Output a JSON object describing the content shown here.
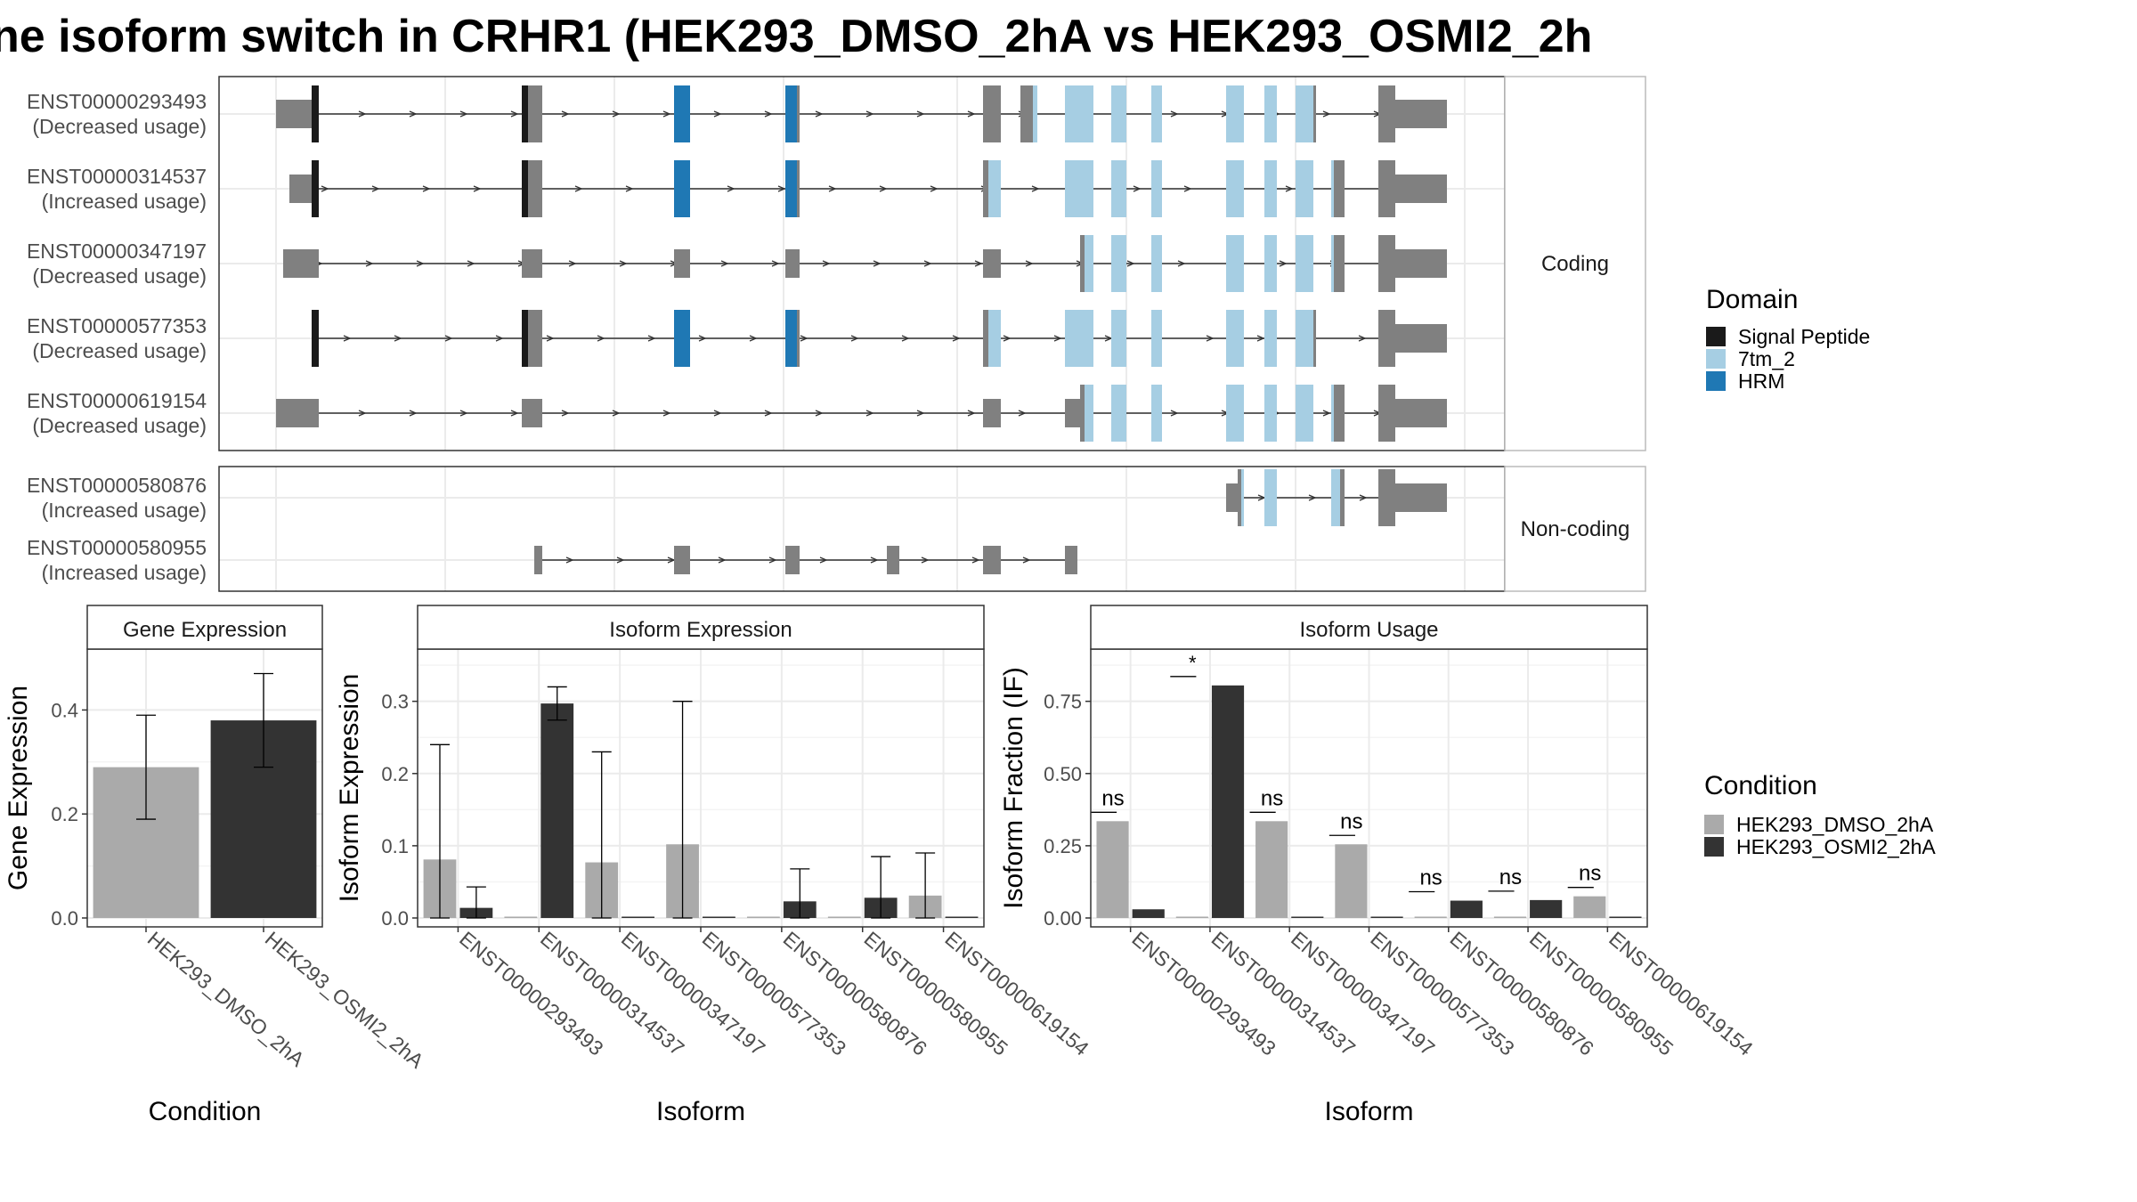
{
  "page": {
    "title": "ne isoform switch in CRHR1 (HEK293_DMSO_2hA vs HEK293_OSMI2_2h",
    "colors": {
      "exon_gray": "#808080",
      "signal_peptide": "#1a1a1a",
      "tm7_2": "#a6cee3",
      "hrm": "#1f78b4",
      "dmso": "#aaaaaa",
      "osmi2": "#333333",
      "grid": "#ebebeb",
      "strip_fill": "#ffffff",
      "panel_border": "#333333"
    }
  },
  "structure": {
    "coding_label": "Coding",
    "noncoding_label": "Non-coding",
    "domain_legend": {
      "title": "Domain",
      "items": [
        {
          "label": "Signal Peptide",
          "color": "#1a1a1a"
        },
        {
          "label": "7tm_2",
          "color": "#a6cee3"
        },
        {
          "label": "HRM",
          "color": "#1f78b4"
        }
      ]
    },
    "coding": [
      {
        "id": "ENST00000293493",
        "usage": "(Decreased usage)"
      },
      {
        "id": "ENST00000314537",
        "usage": "(Increased usage)"
      },
      {
        "id": "ENST00000347197",
        "usage": "(Decreased usage)"
      },
      {
        "id": "ENST00000577353",
        "usage": "(Decreased usage)"
      },
      {
        "id": "ENST00000619154",
        "usage": "(Decreased usage)"
      }
    ],
    "noncoding": [
      {
        "id": "ENST00000580876",
        "usage": "(Increased usage)"
      },
      {
        "id": "ENST00000580955",
        "usage": "(Increased usage)"
      }
    ]
  },
  "chart_data": [
    {
      "type": "bar",
      "title": "Gene Expression",
      "xlabel": "Condition",
      "ylabel": "Gene Expression",
      "ylim": [
        0,
        0.5
      ],
      "yticks": [
        "0.0",
        "0.2",
        "0.4"
      ],
      "categories": [
        "HEK293_DMSO_2hA",
        "HEK293_OSMI2_2hA"
      ],
      "values": [
        0.29,
        0.38
      ],
      "error_low": [
        0.19,
        0.29
      ],
      "error_high": [
        0.39,
        0.47
      ]
    },
    {
      "type": "bar",
      "title": "Isoform Expression",
      "xlabel": "Isoform",
      "ylabel": "Isoform Expression",
      "ylim": [
        0,
        0.36
      ],
      "yticks": [
        "0.0",
        "0.1",
        "0.2",
        "0.3"
      ],
      "categories": [
        "ENST00000293493",
        "ENST00000314537",
        "ENST00000347197",
        "ENST00000577353",
        "ENST00000580876",
        "ENST00000580955",
        "ENST00000619154"
      ],
      "series": [
        {
          "name": "HEK293_DMSO_2hA",
          "values": [
            0.081,
            0.0,
            0.077,
            0.102,
            0.0,
            0.0,
            0.031
          ],
          "error_low": [
            0.0,
            0.0,
            0.0,
            0.0,
            0.0,
            0.0,
            0.0
          ],
          "error_high": [
            0.24,
            0.0,
            0.23,
            0.3,
            0.0,
            0.0,
            0.09
          ]
        },
        {
          "name": "HEK293_OSMI2_2hA",
          "values": [
            0.014,
            0.297,
            0.0,
            0.0,
            0.023,
            0.028,
            0.0
          ],
          "error_low": [
            0.0,
            0.274,
            0.0,
            0.0,
            0.0,
            0.0,
            0.0
          ],
          "error_high": [
            0.043,
            0.32,
            0.0,
            0.0,
            0.068,
            0.085,
            0.0
          ]
        }
      ]
    },
    {
      "type": "bar",
      "title": "Isoform Usage",
      "xlabel": "Isoform",
      "ylabel": "Isoform Fraction (IF)",
      "ylim": [
        0,
        0.9
      ],
      "yticks": [
        "0.00",
        "0.25",
        "0.50",
        "0.75"
      ],
      "categories": [
        "ENST00000293493",
        "ENST00000314537",
        "ENST00000347197",
        "ENST00000577353",
        "ENST00000580876",
        "ENST00000580955",
        "ENST00000619154"
      ],
      "series": [
        {
          "name": "HEK293_DMSO_2hA",
          "values": [
            0.335,
            0.0,
            0.335,
            0.255,
            0.0,
            0.0,
            0.075
          ]
        },
        {
          "name": "HEK293_OSMI2_2hA",
          "values": [
            0.03,
            0.805,
            0.0,
            0.0,
            0.06,
            0.062,
            0.0
          ]
        }
      ],
      "significance": [
        "ns",
        "*",
        "ns",
        "ns",
        "ns",
        "ns",
        "ns"
      ]
    }
  ],
  "condition_legend": {
    "title": "Condition",
    "items": [
      {
        "label": "HEK293_DMSO_2hA",
        "color": "#aaaaaa"
      },
      {
        "label": "HEK293_OSMI2_2hA",
        "color": "#333333"
      }
    ]
  }
}
